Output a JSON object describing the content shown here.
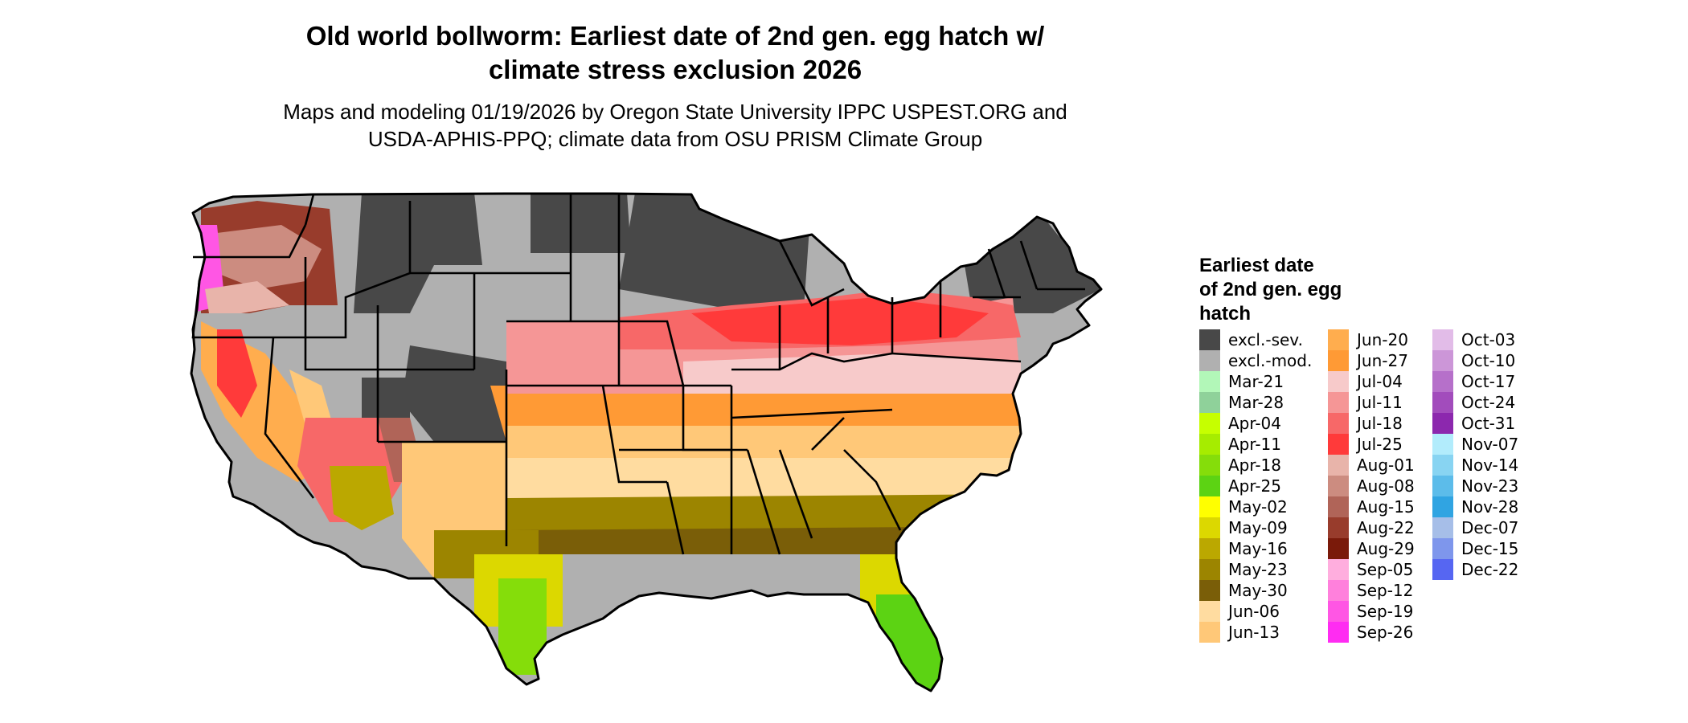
{
  "title_line1": "Old world bollworm: Earliest date of 2nd gen. egg hatch w/",
  "title_line2": "climate stress exclusion 2026",
  "subtitle_line1": "Maps and modeling 01/19/2026 by Oregon State University IPPC USPEST.ORG and",
  "subtitle_line2": "USDA-APHIS-PPQ; climate data from OSU PRISM Climate Group",
  "legend": {
    "title_line1": "Earliest date",
    "title_line2": "of 2nd gen. egg",
    "title_line3": "hatch",
    "columns": [
      [
        {
          "label": "excl.-sev.",
          "color": "#484848"
        },
        {
          "label": "excl.-mod.",
          "color": "#b0b0b0"
        },
        {
          "label": "Mar-21",
          "color": "#b2f7b8"
        },
        {
          "label": "Mar-28",
          "color": "#8fd19a"
        },
        {
          "label": "Apr-04",
          "color": "#c6ff00"
        },
        {
          "label": "Apr-11",
          "color": "#a6ec00"
        },
        {
          "label": "Apr-18",
          "color": "#85dd0a"
        },
        {
          "label": "Apr-25",
          "color": "#5cd313"
        },
        {
          "label": "May-02",
          "color": "#ffff00"
        },
        {
          "label": "May-09",
          "color": "#dcd800"
        },
        {
          "label": "May-16",
          "color": "#bba800"
        },
        {
          "label": "May-23",
          "color": "#9c8500"
        },
        {
          "label": "May-30",
          "color": "#7a5e08"
        },
        {
          "label": "Jun-06",
          "color": "#ffdca0"
        },
        {
          "label": "Jun-13",
          "color": "#ffc878"
        }
      ],
      [
        {
          "label": "Jun-20",
          "color": "#ffad4e"
        },
        {
          "label": "Jun-27",
          "color": "#ff9a35"
        },
        {
          "label": "Jul-04",
          "color": "#f7caca"
        },
        {
          "label": "Jul-11",
          "color": "#f59696"
        },
        {
          "label": "Jul-18",
          "color": "#f76868"
        },
        {
          "label": "Jul-25",
          "color": "#ff3a3a"
        },
        {
          "label": "Aug-01",
          "color": "#e8b4aa"
        },
        {
          "label": "Aug-08",
          "color": "#cc8c80"
        },
        {
          "label": "Aug-15",
          "color": "#b06458"
        },
        {
          "label": "Aug-22",
          "color": "#983c2c"
        },
        {
          "label": "Aug-29",
          "color": "#7a1a0a"
        },
        {
          "label": "Sep-05",
          "color": "#ffaede"
        },
        {
          "label": "Sep-12",
          "color": "#ff80dc"
        },
        {
          "label": "Sep-19",
          "color": "#ff56e4"
        },
        {
          "label": "Sep-26",
          "color": "#ff2cf2"
        }
      ],
      [
        {
          "label": "Oct-03",
          "color": "#e2bce8"
        },
        {
          "label": "Oct-10",
          "color": "#cc96d8"
        },
        {
          "label": "Oct-17",
          "color": "#b670ca"
        },
        {
          "label": "Oct-24",
          "color": "#a24cbc"
        },
        {
          "label": "Oct-31",
          "color": "#8c28ae"
        },
        {
          "label": "Nov-07",
          "color": "#b2ecfc"
        },
        {
          "label": "Nov-14",
          "color": "#88d4f2"
        },
        {
          "label": "Nov-23",
          "color": "#5cbcea"
        },
        {
          "label": "Nov-28",
          "color": "#30a4e2"
        },
        {
          "label": "Dec-07",
          "color": "#a6bee8"
        },
        {
          "label": "Dec-15",
          "color": "#7e96ec"
        },
        {
          "label": "Dec-22",
          "color": "#5666f2"
        }
      ]
    ]
  }
}
